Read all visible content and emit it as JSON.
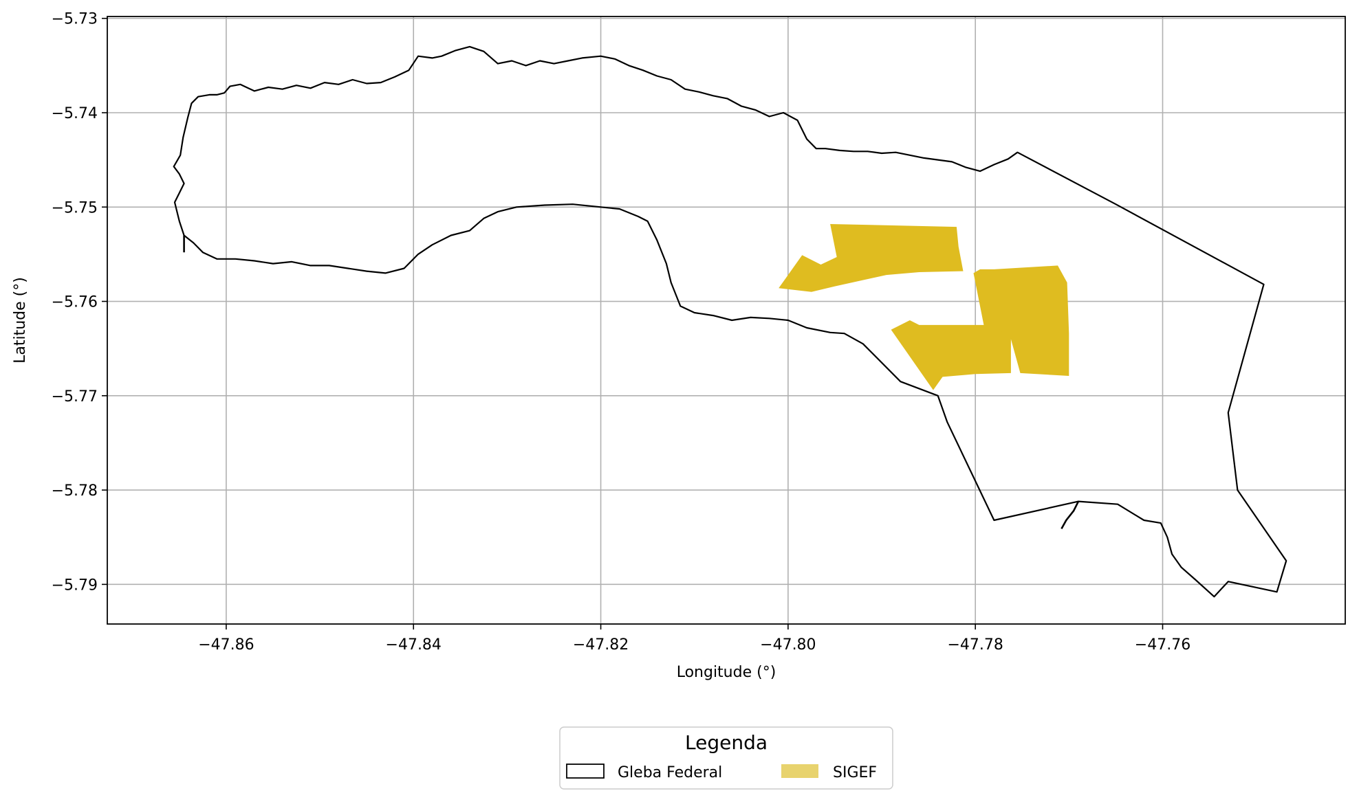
{
  "chart_data": {
    "type": "map",
    "xlabel": "Longitude (°)",
    "ylabel": "Latitude (°)",
    "xlim": [
      -47.8727,
      -47.7405
    ],
    "ylim": [
      -5.7942,
      -5.7298
    ],
    "grid": true,
    "x_ticks": [
      {
        "value": -47.86,
        "label": "−47.86"
      },
      {
        "value": -47.84,
        "label": "−47.84"
      },
      {
        "value": -47.82,
        "label": "−47.82"
      },
      {
        "value": -47.8,
        "label": "−47.80"
      },
      {
        "value": -47.78,
        "label": "−47.78"
      },
      {
        "value": -47.76,
        "label": "−47.76"
      }
    ],
    "y_ticks": [
      {
        "value": -5.73,
        "label": "−5.73"
      },
      {
        "value": -5.74,
        "label": "−5.74"
      },
      {
        "value": -5.75,
        "label": "−5.75"
      },
      {
        "value": -5.76,
        "label": "−5.76"
      },
      {
        "value": -5.77,
        "label": "−5.77"
      },
      {
        "value": -5.78,
        "label": "−5.78"
      },
      {
        "value": -5.79,
        "label": "−5.79"
      }
    ],
    "legend": {
      "title": "Legenda",
      "placement": "bottom-center",
      "entries": [
        {
          "label": "Gleba Federal",
          "style": "outline",
          "color": "#000000"
        },
        {
          "label": "SIGEF",
          "style": "fill",
          "color": "#e8d36e"
        }
      ]
    },
    "layers": [
      {
        "name": "Gleba Federal",
        "style": "outline",
        "stroke": "#000000",
        "fill": "none",
        "polygons": [
          [
            [
              -47.8656,
              -5.7457
            ],
            [
              -47.8649,
              -5.7445
            ],
            [
              -47.8646,
              -5.7426
            ],
            [
              -47.8641,
              -5.7405
            ],
            [
              -47.8637,
              -5.739
            ],
            [
              -47.863,
              -5.7383
            ],
            [
              -47.8618,
              -5.7381
            ],
            [
              -47.861,
              -5.7381
            ],
            [
              -47.8602,
              -5.7379
            ],
            [
              -47.8596,
              -5.7372
            ],
            [
              -47.8585,
              -5.737
            ],
            [
              -47.857,
              -5.7377
            ],
            [
              -47.8555,
              -5.7373
            ],
            [
              -47.854,
              -5.7375
            ],
            [
              -47.8525,
              -5.7371
            ],
            [
              -47.851,
              -5.7374
            ],
            [
              -47.8495,
              -5.7368
            ],
            [
              -47.848,
              -5.737
            ],
            [
              -47.8465,
              -5.7365
            ],
            [
              -47.845,
              -5.7369
            ],
            [
              -47.8435,
              -5.7368
            ],
            [
              -47.842,
              -5.7362
            ],
            [
              -47.8405,
              -5.7355
            ],
            [
              -47.8395,
              -5.734
            ],
            [
              -47.838,
              -5.7342
            ],
            [
              -47.837,
              -5.734
            ],
            [
              -47.8355,
              -5.7334
            ],
            [
              -47.834,
              -5.733
            ],
            [
              -47.8325,
              -5.7335
            ],
            [
              -47.831,
              -5.7348
            ],
            [
              -47.8295,
              -5.7345
            ],
            [
              -47.828,
              -5.735
            ],
            [
              -47.8265,
              -5.7345
            ],
            [
              -47.825,
              -5.7348
            ],
            [
              -47.8235,
              -5.7345
            ],
            [
              -47.822,
              -5.7342
            ],
            [
              -47.82,
              -5.734
            ],
            [
              -47.8185,
              -5.7343
            ],
            [
              -47.817,
              -5.735
            ],
            [
              -47.8155,
              -5.7355
            ],
            [
              -47.814,
              -5.7361
            ],
            [
              -47.8125,
              -5.7365
            ],
            [
              -47.811,
              -5.7375
            ],
            [
              -47.8095,
              -5.7378
            ],
            [
              -47.808,
              -5.7382
            ],
            [
              -47.8065,
              -5.7385
            ],
            [
              -47.805,
              -5.7393
            ],
            [
              -47.8035,
              -5.7397
            ],
            [
              -47.802,
              -5.7404
            ],
            [
              -47.8005,
              -5.74
            ],
            [
              -47.799,
              -5.7408
            ],
            [
              -47.798,
              -5.7428
            ],
            [
              -47.797,
              -5.7438
            ],
            [
              -47.796,
              -5.7438
            ],
            [
              -47.7945,
              -5.744
            ],
            [
              -47.793,
              -5.7441
            ],
            [
              -47.7915,
              -5.7441
            ],
            [
              -47.79,
              -5.7443
            ],
            [
              -47.7885,
              -5.7442
            ],
            [
              -47.787,
              -5.7445
            ],
            [
              -47.7855,
              -5.7448
            ],
            [
              -47.784,
              -5.745
            ],
            [
              -47.7825,
              -5.7452
            ],
            [
              -47.781,
              -5.7458
            ],
            [
              -47.7795,
              -5.7462
            ],
            [
              -47.778,
              -5.7455
            ],
            [
              -47.7765,
              -5.7449
            ],
            [
              -47.7755,
              -5.7442
            ],
            [
              -47.765,
              -5.7497
            ],
            [
              -47.7492,
              -5.7582
            ],
            [
              -47.753,
              -5.7718
            ],
            [
              -47.752,
              -5.78
            ],
            [
              -47.7468,
              -5.7875
            ],
            [
              -47.7478,
              -5.7908
            ],
            [
              -47.753,
              -5.7897
            ],
            [
              -47.7545,
              -5.7913
            ],
            [
              -47.7565,
              -5.7895
            ],
            [
              -47.758,
              -5.7882
            ],
            [
              -47.759,
              -5.7868
            ],
            [
              -47.7595,
              -5.785
            ],
            [
              -47.7602,
              -5.7835
            ],
            [
              -47.762,
              -5.7832
            ],
            [
              -47.7648,
              -5.7815
            ],
            [
              -47.769,
              -5.7812
            ],
            [
              -47.778,
              -5.7832
            ],
            [
              -47.783,
              -5.7728
            ],
            [
              -47.784,
              -5.77
            ],
            [
              -47.788,
              -5.7685
            ],
            [
              -47.792,
              -5.7645
            ],
            [
              -47.794,
              -5.7634
            ],
            [
              -47.7955,
              -5.7633
            ],
            [
              -47.798,
              -5.7628
            ],
            [
              -47.8,
              -5.762
            ],
            [
              -47.802,
              -5.7618
            ],
            [
              -47.804,
              -5.7617
            ],
            [
              -47.806,
              -5.762
            ],
            [
              -47.808,
              -5.7615
            ],
            [
              -47.81,
              -5.7612
            ],
            [
              -47.8115,
              -5.7605
            ],
            [
              -47.8125,
              -5.758
            ],
            [
              -47.813,
              -5.756
            ],
            [
              -47.814,
              -5.7535
            ],
            [
              -47.815,
              -5.7515
            ],
            [
              -47.816,
              -5.751
            ],
            [
              -47.818,
              -5.7502
            ],
            [
              -47.82,
              -5.75
            ],
            [
              -47.823,
              -5.7497
            ],
            [
              -47.826,
              -5.7498
            ],
            [
              -47.829,
              -5.75
            ],
            [
              -47.831,
              -5.7505
            ],
            [
              -47.8325,
              -5.7512
            ],
            [
              -47.834,
              -5.7525
            ],
            [
              -47.836,
              -5.753
            ],
            [
              -47.838,
              -5.754
            ],
            [
              -47.8395,
              -5.755
            ],
            [
              -47.841,
              -5.7565
            ],
            [
              -47.843,
              -5.757
            ],
            [
              -47.845,
              -5.7568
            ],
            [
              -47.847,
              -5.7565
            ],
            [
              -47.849,
              -5.7562
            ],
            [
              -47.851,
              -5.7562
            ],
            [
              -47.853,
              -5.7558
            ],
            [
              -47.855,
              -5.756
            ],
            [
              -47.857,
              -5.7557
            ],
            [
              -47.859,
              -5.7555
            ],
            [
              -47.861,
              -5.7555
            ],
            [
              -47.8625,
              -5.7548
            ],
            [
              -47.8635,
              -5.7538
            ],
            [
              -47.8645,
              -5.753
            ],
            [
              -47.865,
              -5.7515
            ],
            [
              -47.8655,
              -5.7495
            ],
            [
              -47.865,
              -5.7485
            ],
            [
              -47.8645,
              -5.7475
            ],
            [
              -47.865,
              -5.7465
            ]
          ]
        ],
        "lines": [
          [
            [
              -47.8645,
              -5.753
            ],
            [
              -47.8645,
              -5.7548
            ]
          ],
          [
            [
              -47.769,
              -5.7812
            ],
            [
              -47.7695,
              -5.7822
            ],
            [
              -47.7703,
              -5.7832
            ],
            [
              -47.7708,
              -5.7841
            ]
          ]
        ]
      },
      {
        "name": "SIGEF",
        "style": "fill",
        "fill": "#dfbc20",
        "stroke": "none",
        "polygons": [
          [
            [
              -47.7955,
              -5.7518
            ],
            [
              -47.782,
              -5.7521
            ],
            [
              -47.7818,
              -5.7542
            ],
            [
              -47.7813,
              -5.7568
            ],
            [
              -47.786,
              -5.7569
            ],
            [
              -47.7895,
              -5.7572
            ],
            [
              -47.795,
              -5.7584
            ],
            [
              -47.7975,
              -5.759
            ],
            [
              -47.801,
              -5.7586
            ],
            [
              -47.7985,
              -5.7551
            ],
            [
              -47.7965,
              -5.7561
            ],
            [
              -47.7948,
              -5.7553
            ]
          ],
          [
            [
              -47.778,
              -5.7566
            ],
            [
              -47.7795,
              -5.7566
            ],
            [
              -47.7802,
              -5.757
            ],
            [
              -47.779,
              -5.763
            ],
            [
              -47.7782,
              -5.7639
            ],
            [
              -47.7762,
              -5.764
            ],
            [
              -47.7752,
              -5.7676
            ],
            [
              -47.77,
              -5.7679
            ],
            [
              -47.77,
              -5.7634
            ],
            [
              -47.7702,
              -5.758
            ],
            [
              -47.7712,
              -5.7562
            ]
          ],
          [
            [
              -47.7762,
              -5.764
            ],
            [
              -47.7762,
              -5.7676
            ],
            [
              -47.78,
              -5.7677
            ],
            [
              -47.7835,
              -5.768
            ],
            [
              -47.7845,
              -5.7694
            ],
            [
              -47.789,
              -5.763
            ],
            [
              -47.787,
              -5.762
            ],
            [
              -47.786,
              -5.7625
            ],
            [
              -47.778,
              -5.7625
            ]
          ]
        ]
      }
    ]
  }
}
